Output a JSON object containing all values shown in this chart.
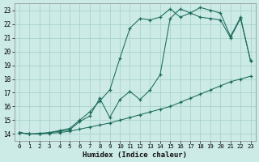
{
  "xlabel": "Humidex (Indice chaleur)",
  "xlim": [
    -0.5,
    23.5
  ],
  "ylim": [
    13.5,
    23.5
  ],
  "xticks": [
    0,
    1,
    2,
    3,
    4,
    5,
    6,
    7,
    8,
    9,
    10,
    11,
    12,
    13,
    14,
    15,
    16,
    17,
    18,
    19,
    20,
    21,
    22,
    23
  ],
  "yticks": [
    14,
    15,
    16,
    17,
    18,
    19,
    20,
    21,
    22,
    23
  ],
  "bg_color": "#cceae6",
  "grid_color": "#aad4ce",
  "line_color": "#1a6b5a",
  "line1_x": [
    0,
    1,
    2,
    3,
    4,
    5,
    6,
    7,
    8,
    9,
    10,
    11,
    12,
    13,
    14,
    15,
    16,
    17,
    18,
    19,
    20,
    21,
    22,
    23
  ],
  "line1_y": [
    14.1,
    14.0,
    14.0,
    14.05,
    14.1,
    14.2,
    14.35,
    14.5,
    14.65,
    14.8,
    15.0,
    15.2,
    15.4,
    15.6,
    15.8,
    16.0,
    16.3,
    16.6,
    16.9,
    17.2,
    17.5,
    17.8,
    18.0,
    18.2
  ],
  "line2_x": [
    0,
    1,
    2,
    3,
    4,
    5,
    6,
    7,
    8,
    9,
    10,
    11,
    12,
    13,
    14,
    15,
    16,
    17,
    18,
    19,
    20,
    21,
    22,
    23
  ],
  "line2_y": [
    14.1,
    14.0,
    14.0,
    14.1,
    14.2,
    14.3,
    14.9,
    15.3,
    16.6,
    15.2,
    16.5,
    17.1,
    16.5,
    17.2,
    18.3,
    22.4,
    23.1,
    22.8,
    22.5,
    22.4,
    22.3,
    21.0,
    22.4,
    19.3
  ],
  "line3_x": [
    0,
    1,
    2,
    3,
    4,
    5,
    6,
    7,
    8,
    9,
    10,
    11,
    12,
    13,
    14,
    15,
    16,
    17,
    18,
    19,
    20,
    21,
    22,
    23
  ],
  "line3_y": [
    14.1,
    14.0,
    14.05,
    14.1,
    14.25,
    14.4,
    15.0,
    15.6,
    16.4,
    17.2,
    19.5,
    21.7,
    22.4,
    22.3,
    22.5,
    23.1,
    22.5,
    22.8,
    23.2,
    23.0,
    22.8,
    21.1,
    22.5,
    19.3
  ]
}
